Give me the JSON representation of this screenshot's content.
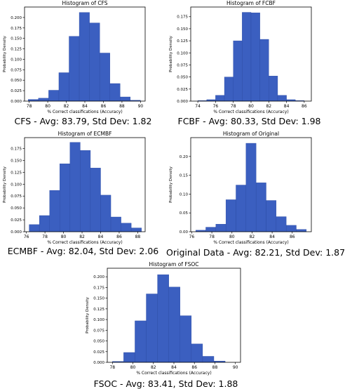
{
  "colors": {
    "bar_fill": "#3b5fc0",
    "bar_edge": "#2a4aa3",
    "axis": "#000000"
  },
  "chart_data": [
    {
      "type": "bar",
      "title": "Histogram of CFS",
      "xlabel": "% Correct classifications (Accuracy)",
      "ylabel": "Probability Density",
      "caption": "CFS - Avg: 83.79, Std Dev: 1.82",
      "bin_edges": [
        77.9,
        79.0,
        80.1,
        81.2,
        82.3,
        83.4,
        84.5,
        85.6,
        86.7,
        87.8,
        88.9,
        90.0
      ],
      "values": [
        0.004,
        0.007,
        0.026,
        0.068,
        0.155,
        0.212,
        0.187,
        0.115,
        0.042,
        0.01,
        0.002
      ],
      "xlim": [
        77.5,
        90.5
      ],
      "ylim": [
        0,
        0.225
      ],
      "xticks": [
        "78",
        "80",
        "82",
        "84",
        "86",
        "88",
        "90"
      ],
      "xtick_values": [
        78,
        80,
        82,
        84,
        86,
        88,
        90
      ],
      "yticks": [
        "0.000",
        "0.025",
        "0.050",
        "0.075",
        "0.100",
        "0.125",
        "0.150",
        "0.175",
        "0.200"
      ],
      "ytick_values": [
        0,
        0.025,
        0.05,
        0.075,
        0.1,
        0.125,
        0.15,
        0.175,
        0.2
      ]
    },
    {
      "type": "bar",
      "title": "Histogram of FCBF",
      "xlabel": "% Correct classifications (Accuracy)",
      "ylabel": "Probability Density",
      "caption": "FCBF - Avg: 80.33, Std Dev: 1.98",
      "bin_edges": [
        74.0,
        75.0,
        76.0,
        77.0,
        78.0,
        79.0,
        80.0,
        81.0,
        82.0,
        83.0,
        84.0,
        85.0,
        86.0
      ],
      "values": [
        0.001,
        0.003,
        0.012,
        0.05,
        0.125,
        0.184,
        0.183,
        0.128,
        0.052,
        0.012,
        0.003,
        0.001
      ],
      "xlim": [
        73.2,
        86.8
      ],
      "ylim": [
        0,
        0.195
      ],
      "xticks": [
        "74",
        "76",
        "78",
        "80",
        "82",
        "84",
        "86"
      ],
      "xtick_values": [
        74,
        76,
        78,
        80,
        82,
        84,
        86
      ],
      "yticks": [
        "0.000",
        "0.025",
        "0.050",
        "0.075",
        "0.100",
        "0.125",
        "0.150",
        "0.175"
      ],
      "ytick_values": [
        0,
        0.025,
        0.05,
        0.075,
        0.1,
        0.125,
        0.15,
        0.175
      ]
    },
    {
      "type": "bar",
      "title": "Histogram of ECMBF",
      "xlabel": "% Correct classifications (Accuracy)",
      "ylabel": "Probability Density",
      "caption": "ECMBF - Avg: 82.04, Std Dev: 2.06",
      "bin_edges": [
        76.3,
        77.4,
        78.5,
        79.6,
        80.7,
        81.8,
        82.9,
        84.0,
        85.1,
        86.2,
        87.3,
        88.4
      ],
      "values": [
        0.015,
        0.034,
        0.087,
        0.143,
        0.188,
        0.171,
        0.134,
        0.077,
        0.031,
        0.018,
        0.008
      ],
      "xlim": [
        75.8,
        88.8
      ],
      "ylim": [
        0,
        0.198
      ],
      "xticks": [
        "76",
        "78",
        "80",
        "82",
        "84",
        "86",
        "88"
      ],
      "xtick_values": [
        76,
        78,
        80,
        82,
        84,
        86,
        88
      ],
      "yticks": [
        "0.000",
        "0.025",
        "0.050",
        "0.075",
        "0.100",
        "0.125",
        "0.150",
        "0.175"
      ],
      "ytick_values": [
        0,
        0.025,
        0.05,
        0.075,
        0.1,
        0.125,
        0.15,
        0.175
      ]
    },
    {
      "type": "bar",
      "title": "Histogram of Original",
      "xlabel": "% Correct classifications (Accuracy)",
      "ylabel": "Probability Density",
      "caption": "Original Data - Avg: 82.21, Std Dev: 1.87",
      "bin_edges": [
        76.4,
        77.4,
        78.4,
        79.4,
        80.4,
        81.4,
        82.4,
        83.4,
        84.4,
        85.4,
        86.4,
        87.4
      ],
      "values": [
        0.004,
        0.012,
        0.02,
        0.085,
        0.124,
        0.235,
        0.13,
        0.083,
        0.04,
        0.017,
        0.006
      ],
      "xlim": [
        75.9,
        87.9
      ],
      "ylim": [
        0,
        0.25
      ],
      "xticks": [
        "76",
        "78",
        "80",
        "82",
        "84",
        "86"
      ],
      "xtick_values": [
        76,
        78,
        80,
        82,
        84,
        86
      ],
      "yticks": [
        "0.00",
        "0.05",
        "0.10",
        "0.15",
        "0.20"
      ],
      "ytick_values": [
        0,
        0.05,
        0.1,
        0.15,
        0.2
      ]
    },
    {
      "type": "bar",
      "title": "Histogram of FSOC",
      "xlabel": "% Correct classifications (Accuracy)",
      "ylabel": "Probability Density",
      "caption": "FSOC - Avg: 83.41, Std Dev: 1.88",
      "bin_edges": [
        78.0,
        79.1,
        80.2,
        81.3,
        82.4,
        83.5,
        84.6,
        85.7,
        86.8,
        87.9,
        89.0
      ],
      "values": [
        0.002,
        0.023,
        0.097,
        0.16,
        0.205,
        0.176,
        0.109,
        0.043,
        0.014,
        0.003
      ],
      "xlim": [
        77.5,
        90.5
      ],
      "ylim": [
        0,
        0.22
      ],
      "xticks": [
        "78",
        "80",
        "82",
        "84",
        "86",
        "88",
        "90"
      ],
      "xtick_values": [
        78,
        80,
        82,
        84,
        86,
        88,
        90
      ],
      "yticks": [
        "0.000",
        "0.025",
        "0.050",
        "0.075",
        "0.100",
        "0.125",
        "0.150",
        "0.175",
        "0.200"
      ],
      "ytick_values": [
        0,
        0.025,
        0.05,
        0.075,
        0.1,
        0.125,
        0.15,
        0.175,
        0.2
      ]
    }
  ]
}
